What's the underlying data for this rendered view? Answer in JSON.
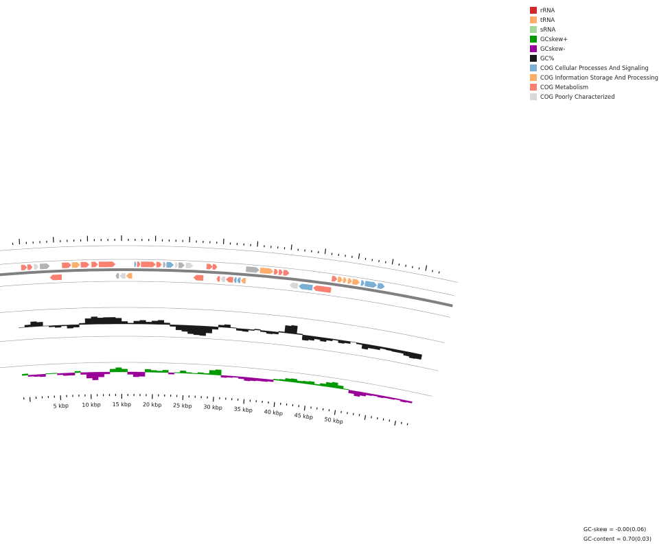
{
  "legend": [
    {
      "label": "rRNA",
      "color": "#d62728"
    },
    {
      "label": "tRNA",
      "color": "#fdae6b"
    },
    {
      "label": "sRNA",
      "color": "#a1d99b"
    },
    {
      "label": "GCskew+",
      "color": "#009900"
    },
    {
      "label": "GCskew-",
      "color": "#990099"
    },
    {
      "label": "GC%",
      "color": "#1a1a1a"
    },
    {
      "label": "COG Cellular Processes And Signaling",
      "color": "#7bafd4"
    },
    {
      "label": "COG Information Storage And Processing",
      "color": "#fdae6b"
    },
    {
      "label": "COG Metabolism",
      "color": "#fa8072"
    },
    {
      "label": "COG Poorly Characterized",
      "color": "#d9d9d9"
    }
  ],
  "axis": {
    "unit": "kbp",
    "tick_labels": [
      "5 kbp",
      "10 kbp",
      "15 kbp",
      "20 kbp",
      "25 kbp",
      "30 kbp",
      "35 kbp",
      "40 kbp",
      "45 kbp",
      "50 kbp"
    ]
  },
  "stats": {
    "gc_skew": "GC-skew = -0.00(0.06)",
    "gc_content": "GC-content = 0.70(0.03)"
  },
  "colors": {
    "metabolism": "#fa8072",
    "information": "#fdae6b",
    "cellular": "#7bafd4",
    "poorly": "#d9d9d9",
    "unassigned": "#b3b3b3",
    "gc_content": "#1a1a1a",
    "skew_pos": "#009900",
    "skew_neg": "#990099",
    "backbone": "#808080"
  },
  "features": {
    "forward": [
      {
        "start": 0.0,
        "end": 0.9,
        "cog": "metabolism"
      },
      {
        "start": 0.95,
        "end": 1.7,
        "cog": "metabolism"
      },
      {
        "start": 1.9,
        "end": 2.6,
        "cog": "poorly"
      },
      {
        "start": 2.8,
        "end": 4.3,
        "cog": "unassigned"
      },
      {
        "start": 6.1,
        "end": 7.5,
        "cog": "metabolism"
      },
      {
        "start": 7.6,
        "end": 8.8,
        "cog": "information"
      },
      {
        "start": 8.9,
        "end": 10.2,
        "cog": "metabolism"
      },
      {
        "start": 10.5,
        "end": 11.5,
        "cog": "metabolism"
      },
      {
        "start": 11.6,
        "end": 14.1,
        "cog": "metabolism"
      },
      {
        "start": 16.9,
        "end": 17.2,
        "cog": "cellular"
      },
      {
        "start": 17.3,
        "end": 17.8,
        "cog": "metabolism"
      },
      {
        "start": 17.9,
        "end": 20.1,
        "cog": "metabolism"
      },
      {
        "start": 20.2,
        "end": 21.0,
        "cog": "metabolism"
      },
      {
        "start": 21.2,
        "end": 21.6,
        "cog": "unassigned"
      },
      {
        "start": 21.7,
        "end": 22.8,
        "cog": "cellular"
      },
      {
        "start": 23.0,
        "end": 23.4,
        "cog": "poorly"
      },
      {
        "start": 23.5,
        "end": 24.4,
        "cog": "unassigned"
      },
      {
        "start": 24.6,
        "end": 25.7,
        "cog": "poorly"
      },
      {
        "start": 27.7,
        "end": 28.6,
        "cog": "metabolism"
      },
      {
        "start": 28.6,
        "end": 29.3,
        "cog": "metabolism"
      },
      {
        "start": 33.6,
        "end": 35.6,
        "cog": "unassigned"
      },
      {
        "start": 35.7,
        "end": 37.7,
        "cog": "information"
      },
      {
        "start": 37.8,
        "end": 38.4,
        "cog": "metabolism"
      },
      {
        "start": 38.5,
        "end": 39.1,
        "cog": "metabolism"
      },
      {
        "start": 39.2,
        "end": 40.1,
        "cog": "metabolism"
      },
      {
        "start": 46.5,
        "end": 47.3,
        "cog": "metabolism"
      },
      {
        "start": 47.4,
        "end": 48.1,
        "cog": "information"
      },
      {
        "start": 48.2,
        "end": 48.7,
        "cog": "information"
      },
      {
        "start": 48.9,
        "end": 49.5,
        "cog": "information"
      },
      {
        "start": 49.6,
        "end": 50.7,
        "cog": "information"
      },
      {
        "start": 50.9,
        "end": 51.4,
        "cog": "cellular"
      },
      {
        "start": 51.5,
        "end": 53.3,
        "cog": "cellular"
      },
      {
        "start": 53.4,
        "end": 54.5,
        "cog": "cellular"
      }
    ],
    "reverse": [
      {
        "start": 4.2,
        "end": 6.0,
        "cog": "metabolism"
      },
      {
        "start": 14.1,
        "end": 14.6,
        "cog": "unassigned"
      },
      {
        "start": 14.7,
        "end": 15.6,
        "cog": "poorly"
      },
      {
        "start": 15.7,
        "end": 16.6,
        "cog": "information"
      },
      {
        "start": 25.8,
        "end": 27.3,
        "cog": "metabolism"
      },
      {
        "start": 29.3,
        "end": 29.8,
        "cog": "metabolism"
      },
      {
        "start": 29.9,
        "end": 30.6,
        "cog": "poorly"
      },
      {
        "start": 30.7,
        "end": 31.8,
        "cog": "metabolism"
      },
      {
        "start": 31.9,
        "end": 32.3,
        "cog": "cellular"
      },
      {
        "start": 32.4,
        "end": 32.9,
        "cog": "cellular"
      },
      {
        "start": 33.0,
        "end": 33.7,
        "cog": "information"
      },
      {
        "start": 40.3,
        "end": 41.6,
        "cog": "poorly"
      },
      {
        "start": 41.7,
        "end": 43.8,
        "cog": "cellular"
      },
      {
        "start": 43.9,
        "end": 46.6,
        "cog": "metabolism"
      }
    ]
  },
  "gc_content": [
    0.0,
    0.5,
    1.2,
    1.0,
    0.0,
    -0.3,
    -0.5,
    -0.2,
    -0.8,
    -0.6,
    0.3,
    1.4,
    1.8,
    1.5,
    1.6,
    1.6,
    1.4,
    0.6,
    0.2,
    0.7,
    0.9,
    0.5,
    0.8,
    1.0,
    0.4,
    -0.4,
    -1.2,
    -1.5,
    -2.0,
    -2.2,
    -2.3,
    -1.6,
    -0.6,
    0.5,
    0.7,
    0.1,
    -0.5,
    -0.6,
    -0.2,
    0.2,
    -0.3,
    -0.6,
    -0.5,
    0.2,
    1.8,
    2.0,
    0.2,
    -1.2,
    -1.0,
    -0.6,
    -0.9,
    -0.5,
    -0.2,
    -0.7,
    -0.5,
    0.0,
    -0.3,
    -1.2,
    -0.8,
    -0.8,
    -0.4,
    -0.5,
    -0.6,
    -0.6,
    -1.0,
    -1.3,
    -1.2
  ],
  "gc_skew": [
    0.3,
    -0.3,
    -0.4,
    -0.5,
    0.1,
    0.1,
    -0.3,
    -0.5,
    -0.5,
    0.3,
    -0.4,
    -1.2,
    -1.6,
    -1.0,
    -0.4,
    0.6,
    0.9,
    0.6,
    -0.5,
    -1.0,
    -0.9,
    0.6,
    0.4,
    0.3,
    0.5,
    -0.3,
    0.1,
    0.5,
    0.2,
    0.1,
    0.3,
    0.2,
    0.9,
    1.1,
    -0.4,
    -0.3,
    -0.2,
    -0.4,
    -0.7,
    -0.6,
    -0.5,
    -0.5,
    -0.4,
    0.2,
    0.3,
    0.6,
    0.7,
    0.4,
    0.5,
    0.6,
    0.2,
    0.5,
    0.9,
    1.1,
    0.6,
    0.1,
    -0.6,
    -1.0,
    -0.7,
    -0.4,
    -0.3,
    -0.4,
    -0.3,
    -0.3,
    -0.2,
    -0.4,
    -0.3
  ]
}
